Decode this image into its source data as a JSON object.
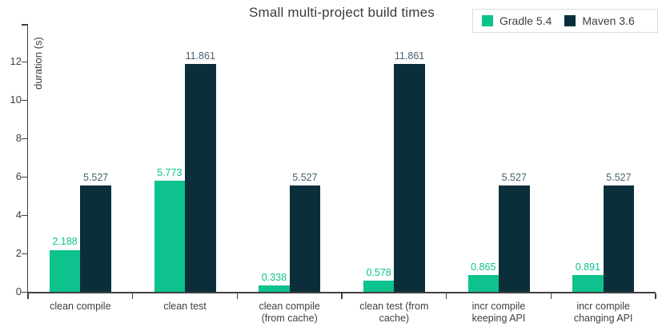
{
  "title": "Small multi-project build times",
  "legend": {
    "items": [
      {
        "label": "Gradle 5.4",
        "color": "#0DC28D"
      },
      {
        "label": "Maven 3.6",
        "color": "#0A2F3A"
      }
    ]
  },
  "chart_data": {
    "type": "bar",
    "title": "Small multi-project build times",
    "xlabel": "",
    "ylabel": "duration (s)",
    "categories": [
      "clean compile",
      "clean test",
      "clean compile (from cache)",
      "clean test (from cache)",
      "incr compile keeping API",
      "incr compile changing API"
    ],
    "category_lines": [
      [
        "clean compile"
      ],
      [
        "clean test"
      ],
      [
        "clean compile",
        "(from cache)"
      ],
      [
        "clean test (from",
        "cache)"
      ],
      [
        "incr compile",
        "keeping API"
      ],
      [
        "incr compile",
        "changing API"
      ]
    ],
    "series": [
      {
        "name": "Gradle 5.4",
        "color": "#0DC28D",
        "label_color": "#0DC28D",
        "values": [
          2.188,
          5.773,
          0.338,
          0.578,
          0.865,
          0.891
        ]
      },
      {
        "name": "Maven 3.6",
        "color": "#0A2F3A",
        "label_color": "#45626F",
        "values": [
          5.527,
          11.861,
          5.527,
          11.861,
          5.527,
          5.527
        ]
      }
    ],
    "y_ticks": [
      0,
      2,
      4,
      6,
      8,
      10,
      12
    ],
    "ylim": [
      0,
      14
    ],
    "grid": false,
    "legend_position": "top-right",
    "value_labels": true,
    "value_label_decimals": 3
  },
  "colors": {
    "axis": "#3f3f3f",
    "text": "#3f3f3f",
    "background": "#ffffff",
    "legend_border": "#dcdcdc"
  }
}
